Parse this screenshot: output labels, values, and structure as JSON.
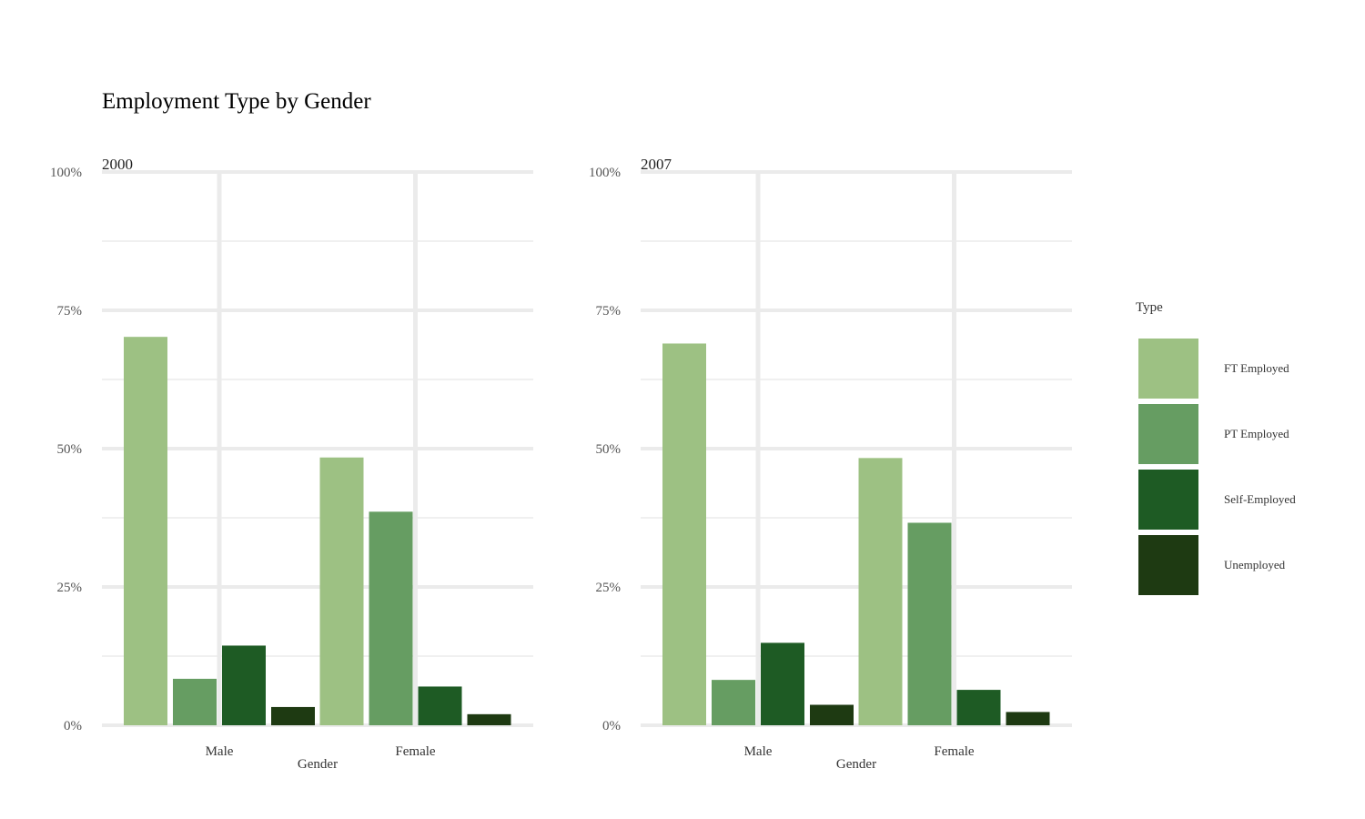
{
  "chart_data": {
    "type": "bar",
    "title": "Employment Type by Gender",
    "xlabel": "Gender",
    "ylabel": "",
    "ylim": [
      0,
      1
    ],
    "yticks": [
      "0%",
      "25%",
      "50%",
      "75%",
      "100%"
    ],
    "categories": [
      "Male",
      "Female"
    ],
    "legend": {
      "title": "Type",
      "placement": "right",
      "entries": [
        "FT Employed",
        "PT Employed",
        "Self-Employed",
        "Unemployed"
      ]
    },
    "colors": {
      "FT Employed": "#9dc183",
      "PT Employed": "#669d62",
      "Self-Employed": "#1e5b24",
      "Unemployed": "#1e3a12"
    },
    "grid": true,
    "panels": [
      {
        "title": "2000",
        "series": [
          {
            "name": "FT Employed",
            "values": [
              0.702,
              0.484
            ]
          },
          {
            "name": "PT Employed",
            "values": [
              0.084,
              0.386
            ]
          },
          {
            "name": "Self-Employed",
            "values": [
              0.144,
              0.07
            ]
          },
          {
            "name": "Unemployed",
            "values": [
              0.033,
              0.02
            ]
          }
        ]
      },
      {
        "title": "2007",
        "series": [
          {
            "name": "FT Employed",
            "values": [
              0.69,
              0.483
            ]
          },
          {
            "name": "PT Employed",
            "values": [
              0.082,
              0.366
            ]
          },
          {
            "name": "Self-Employed",
            "values": [
              0.149,
              0.064
            ]
          },
          {
            "name": "Unemployed",
            "values": [
              0.037,
              0.024
            ]
          }
        ]
      }
    ]
  }
}
